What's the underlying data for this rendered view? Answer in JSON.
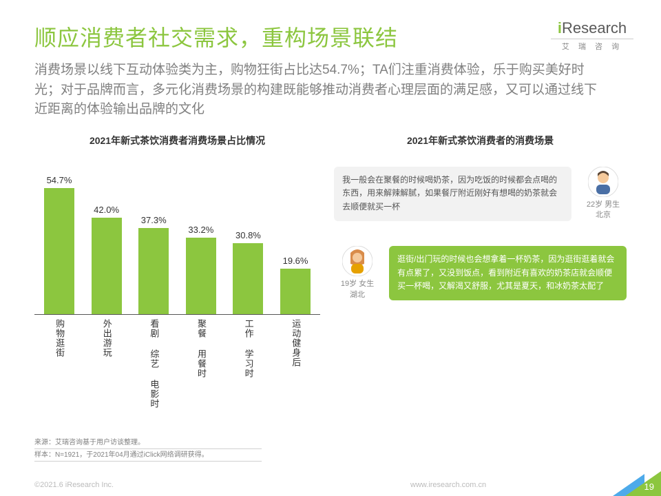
{
  "logo": {
    "main_prefix": "i",
    "main_rest": "Research",
    "sub": "艾 瑞 咨 询"
  },
  "title": "顺应消费者社交需求，重构场景联结",
  "subtitle": "消费场景以线下互动体验类为主，购物狂街占比达54.7%；TA们注重消费体验，乐于购买美好时光；对于品牌而言，多元化消费场景的构建既能够推动消费者心理层面的满足感，又可以通过线下近距离的体验输出品牌的文化",
  "chart": {
    "type": "bar",
    "title": "2021年新式茶饮消费者消费场景占比情况",
    "bar_color": "#8cc63f",
    "value_fontsize": 13,
    "label_fontsize": 13,
    "max": 60,
    "categories": [
      "购物逛街",
      "外出游玩",
      "看剧 综艺 电影时",
      "聚餐 用餐时",
      "工作 学习时",
      "运动健身后"
    ],
    "values": [
      54.7,
      42.0,
      37.3,
      33.2,
      30.8,
      19.6
    ],
    "display": [
      "54.7%",
      "42.0%",
      "37.3%",
      "33.2%",
      "30.8%",
      "19.6%"
    ]
  },
  "right_title": "2021年新式茶饮消费者的消费场景",
  "personas": [
    {
      "bubble_class": "grey",
      "bubble": "我一般会在聚餐的时候喝奶茶，因为吃饭的时候都会点喝的东西，用来解辣解腻，如果餐厅附近刚好有想喝的奶茶就会去顺便就买一杯",
      "line1": "22岁 男生",
      "line2": "北京",
      "avatar": "male"
    },
    {
      "bubble_class": "green",
      "bubble": "逛街/出门玩的时候也会想拿着一杯奶茶，因为逛街逛着就会有点累了，又没到饭点，看到附近有喜欢的奶茶店就会顺便买一杯喝，又解渴又舒服，尤其是夏天，和冰奶茶太配了",
      "line1": "19岁 女生",
      "line2": "湖北",
      "avatar": "female"
    }
  ],
  "sources": {
    "l1": "来源：艾瑞咨询基于用户访谈整理。",
    "l2": "样本：N=1921，于2021年04月通过iClick网络调研获得。"
  },
  "footer": {
    "copyright": "©2021.6 iResearch Inc.",
    "url": "www.iresearch.com.cn",
    "page": "19"
  }
}
